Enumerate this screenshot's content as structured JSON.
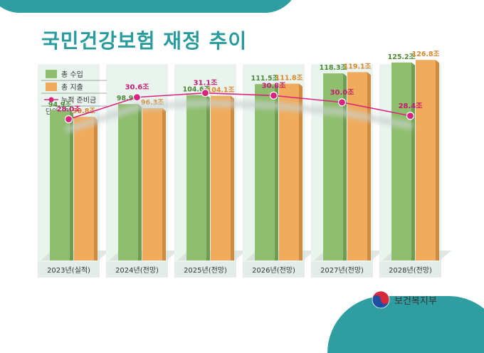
{
  "title": "국민건강보험 재정 추이",
  "logo_text": "보건복지부",
  "chart_data": {
    "type": "bar",
    "title": "국민건강보험 재정 추이",
    "unit_label": "단위 : 원",
    "categories": [
      "2023년(실적)",
      "2024년(전망)",
      "2025년(전망)",
      "2026년(전망)",
      "2027년(전망)",
      "2028년(전망)"
    ],
    "series": [
      {
        "name": "총 수입",
        "values": [
          94.9,
          98.9,
          104.6,
          111.5,
          118.3,
          125.2
        ],
        "labels": [
          "94.9조",
          "98.9조",
          "104.6조",
          "111.5조",
          "118.3조",
          "125.2조"
        ],
        "color": "#8fbe6e"
      },
      {
        "name": "총 지출",
        "values": [
          90.8,
          96.3,
          104.1,
          111.8,
          119.1,
          126.8
        ],
        "labels": [
          "90.8조",
          "96.3조",
          "104.1조",
          "111.8조",
          "119.1조",
          "126.8조"
        ],
        "color": "#f0ab5c"
      }
    ],
    "line_series": {
      "name": "누적 준비금",
      "values": [
        28.0,
        30.6,
        31.1,
        30.8,
        30.0,
        28.4
      ],
      "labels": [
        "28.0조",
        "30.6조",
        "31.1조",
        "30.8조",
        "30.0조",
        "28.4조"
      ],
      "color": "#d9237e"
    },
    "ylim_bars": [
      0,
      135
    ],
    "ylim_line": [
      24,
      32
    ],
    "grid": false,
    "legend_position": "top-left"
  }
}
